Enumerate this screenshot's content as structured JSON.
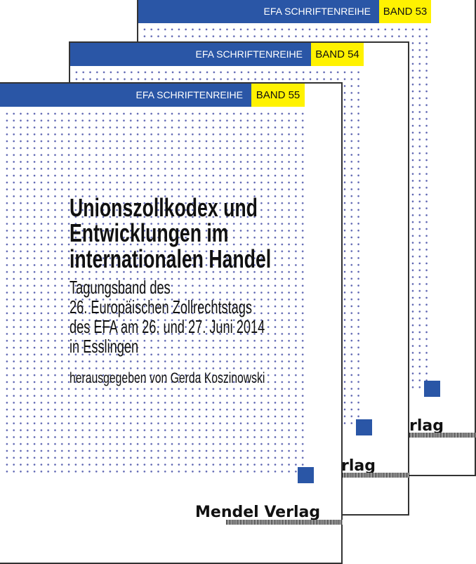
{
  "covers": [
    {
      "series": "EFA SCHRIFTENREIHE",
      "band": "BAND 53",
      "publisher_fragment": "rlag"
    },
    {
      "series": "EFA SCHRIFTENREIHE",
      "band": "BAND 54",
      "publisher_fragment": "rlag"
    },
    {
      "series": "EFA SCHRIFTENREIHE",
      "band": "BAND 55",
      "title_lines": [
        "Unionszollkodex und",
        "Entwicklungen im",
        "internationalen Handel"
      ],
      "subtitle_lines": [
        "Tagungsband des",
        "26. Europäischen Zollrechtstags",
        "des EFA am 26. und 27. Juni 2014",
        "in Esslingen"
      ],
      "editor": "herausgegeben von Gerda Koszinowski",
      "publisher": "Mendel Verlag"
    }
  ],
  "colors": {
    "band_blue": "#2a56a6",
    "band_yellow": "#fff200",
    "dots": "#5a62b0"
  }
}
